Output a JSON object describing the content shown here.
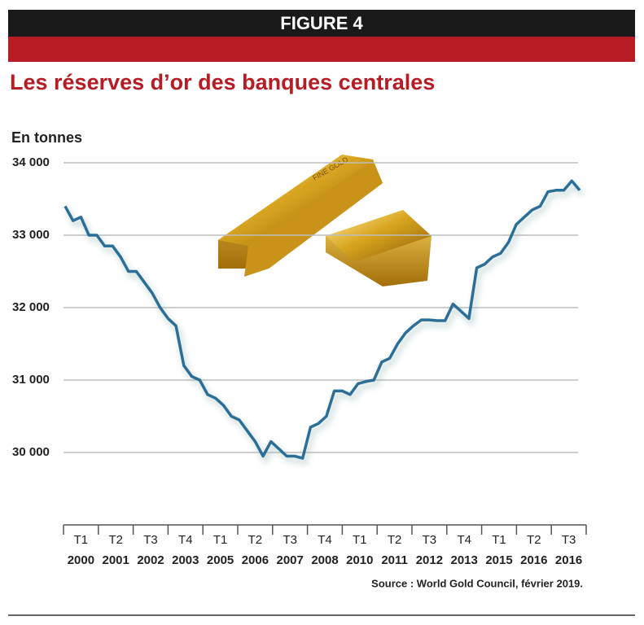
{
  "chart_data": {
    "type": "line",
    "header": "FIGURE 4",
    "title": "Les réserves d’or des banques centrales",
    "y_label": "En tonnes",
    "source": "Source : World Gold Council, février 2019.",
    "color": "#2b6f98",
    "grid": true,
    "ylim": [
      29000,
      34000
    ],
    "yticks": [
      {
        "value": 30000,
        "label": "30 000"
      },
      {
        "value": 31000,
        "label": "31 000"
      },
      {
        "value": 32000,
        "label": "32 000"
      },
      {
        "value": 33000,
        "label": "33 000"
      },
      {
        "value": 34000,
        "label": "34 000"
      }
    ],
    "x_tick_labels": [
      [
        "T1",
        "2000"
      ],
      [
        "T2",
        "2001"
      ],
      [
        "T3",
        "2002"
      ],
      [
        "T4",
        "2003"
      ],
      [
        "T1",
        "2005"
      ],
      [
        "T2",
        "2006"
      ],
      [
        "T3",
        "2007"
      ],
      [
        "T4",
        "2008"
      ],
      [
        "T1",
        "2010"
      ],
      [
        "T2",
        "2011"
      ],
      [
        "T3",
        "2012"
      ],
      [
        "T4",
        "2013"
      ],
      [
        "T1",
        "2015"
      ],
      [
        "T2",
        "2016"
      ],
      [
        "T3",
        "2016"
      ]
    ],
    "values": [
      33400,
      33200,
      33250,
      33000,
      33000,
      32850,
      32850,
      32700,
      32500,
      32500,
      32350,
      32200,
      32000,
      31850,
      31750,
      31200,
      31050,
      31000,
      30800,
      30750,
      30650,
      30500,
      30450,
      30300,
      30150,
      29950,
      30150,
      30050,
      29950,
      29950,
      29920,
      30350,
      30400,
      30500,
      30850,
      30850,
      30800,
      30950,
      30980,
      31000,
      31250,
      31300,
      31500,
      31650,
      31750,
      31830,
      31830,
      31820,
      31820,
      32050,
      31950,
      31850,
      32550,
      32600,
      32700,
      32750,
      32900,
      33150,
      33250,
      33350,
      33400,
      33600,
      33620,
      33620,
      33750,
      33620
    ]
  }
}
